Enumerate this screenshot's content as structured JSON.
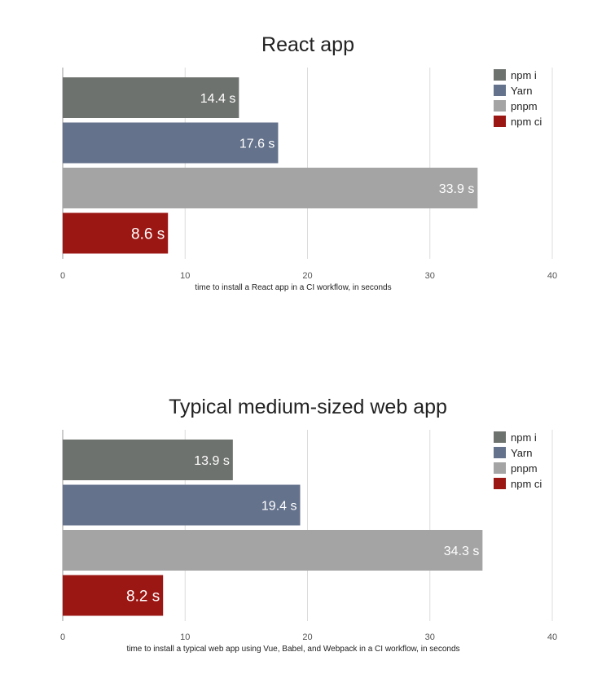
{
  "colors": {
    "npm_i": "#6e726e",
    "yarn": "#64728c",
    "pnpm": "#a4a4a4",
    "npm_ci": "#9b1714",
    "grid": "#dcdcdc",
    "axis": "#9a9a9a",
    "text": "#222222",
    "tick": "#555555",
    "bar_label": "#ffffff"
  },
  "chart_data": [
    {
      "type": "bar",
      "orientation": "horizontal",
      "title": "React app",
      "xlabel": "time to install a React app in a CI workflow, in seconds",
      "ylabel": "",
      "xlim": [
        0,
        40
      ],
      "xticks": [
        "0",
        "10",
        "20",
        "30",
        "40"
      ],
      "grid": true,
      "legend": "top-right",
      "series": [
        {
          "name": "npm i",
          "value": 14.4,
          "label": "14.4 s",
          "color_key": "npm_i"
        },
        {
          "name": "Yarn",
          "value": 17.6,
          "label": "17.6 s",
          "color_key": "yarn"
        },
        {
          "name": "pnpm",
          "value": 33.9,
          "label": "33.9 s",
          "color_key": "pnpm"
        },
        {
          "name": "npm ci",
          "value": 8.6,
          "label": "8.6 s",
          "color_key": "npm_ci"
        }
      ]
    },
    {
      "type": "bar",
      "orientation": "horizontal",
      "title": "Typical medium-sized web app",
      "xlabel": "time to install a typical web app using Vue, Babel, and Webpack in a CI workflow, in seconds",
      "ylabel": "",
      "xlim": [
        0,
        40
      ],
      "xticks": [
        "0",
        "10",
        "20",
        "30",
        "40"
      ],
      "grid": true,
      "legend": "top-right",
      "series": [
        {
          "name": "npm i",
          "value": 13.9,
          "label": "13.9 s",
          "color_key": "npm_i"
        },
        {
          "name": "Yarn",
          "value": 19.4,
          "label": "19.4 s",
          "color_key": "yarn"
        },
        {
          "name": "pnpm",
          "value": 34.3,
          "label": "34.3 s",
          "color_key": "pnpm"
        },
        {
          "name": "npm ci",
          "value": 8.2,
          "label": "8.2 s",
          "color_key": "npm_ci"
        }
      ]
    }
  ]
}
